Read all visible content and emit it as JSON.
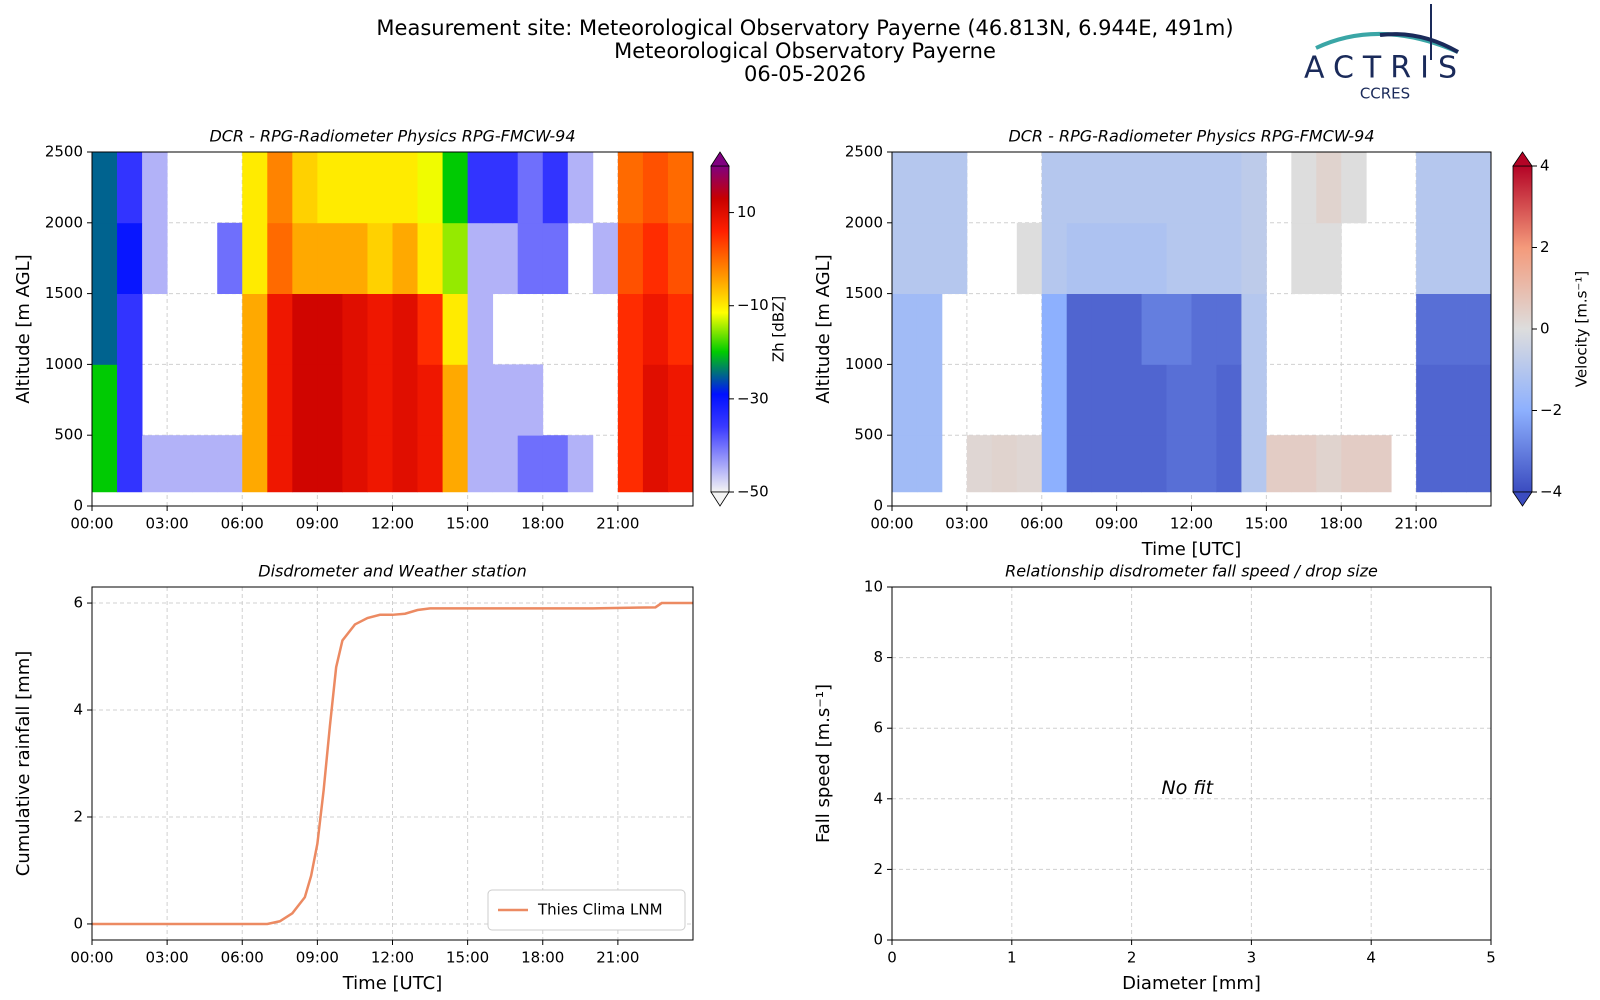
{
  "header": {
    "lines": [
      "Measurement site: Meteorological Observatory Payerne (46.813N, 6.944E, 491m)",
      "Meteorological Observatory Payerne",
      "06-05-2026"
    ],
    "logo": "ACTRIS",
    "logo_sub": "CCRES"
  },
  "chart_data": [
    {
      "type": "heatmap",
      "title": "DCR - RPG-Radiometer Physics RPG-FMCW-94",
      "ylabel": "Altitude [m AGL]",
      "colormap": "jet",
      "colorbar_label": "Zh [dBZ]",
      "clim": [
        -50,
        20
      ],
      "cbar_ticks": [
        {
          "value": -50,
          "label": "−50"
        },
        {
          "value": -30,
          "label": "−30"
        },
        {
          "value": -10,
          "label": "−10"
        },
        10
      ],
      "xlim": [
        0,
        24
      ],
      "xticks": [
        {
          "value": 0,
          "label": "00:00"
        },
        {
          "value": 3,
          "label": "03:00"
        },
        {
          "value": 6,
          "label": "06:00"
        },
        {
          "value": 9,
          "label": "09:00"
        },
        {
          "value": 12,
          "label": "12:00"
        },
        {
          "value": 15,
          "label": "15:00"
        },
        {
          "value": 18,
          "label": "18:00"
        },
        {
          "value": 21,
          "label": "21:00"
        }
      ],
      "ylim": [
        0,
        2500
      ],
      "yticks": [
        0,
        500,
        1000,
        1500,
        2000,
        2500
      ],
      "grid": true,
      "x_bins": [
        0,
        1,
        2,
        3,
        4,
        5,
        6,
        7,
        8,
        9,
        10,
        11,
        12,
        13,
        14,
        15,
        16,
        17,
        18,
        19,
        20,
        21,
        22,
        23,
        24
      ],
      "y_bins": [
        100,
        500,
        1000,
        1500,
        2000,
        2500
      ],
      "values": [
        [
          -20,
          -35,
          -45,
          -45,
          -45,
          -45,
          -5,
          8,
          12,
          12,
          10,
          8,
          10,
          8,
          -5,
          -45,
          -45,
          -40,
          -40,
          -45,
          null,
          5,
          10,
          8
        ],
        [
          -20,
          -35,
          null,
          null,
          null,
          null,
          -5,
          8,
          12,
          12,
          10,
          8,
          10,
          8,
          -5,
          -45,
          -45,
          -45,
          null,
          null,
          null,
          5,
          10,
          8
        ],
        [
          -25,
          -35,
          null,
          null,
          null,
          null,
          -5,
          8,
          12,
          12,
          10,
          8,
          10,
          5,
          -10,
          -45,
          null,
          null,
          null,
          null,
          null,
          5,
          8,
          5
        ],
        [
          -25,
          -30,
          -45,
          null,
          null,
          -40,
          -10,
          0,
          -5,
          -5,
          -5,
          -8,
          -5,
          -10,
          -15,
          -45,
          -45,
          -40,
          -40,
          null,
          -45,
          2,
          5,
          2
        ],
        [
          -25,
          -35,
          -45,
          null,
          null,
          null,
          -10,
          -2,
          -8,
          -10,
          -10,
          -10,
          -10,
          -12,
          -20,
          -35,
          -35,
          -40,
          -35,
          -45,
          null,
          0,
          2,
          0
        ]
      ]
    },
    {
      "type": "heatmap",
      "title": "DCR - RPG-Radiometer Physics RPG-FMCW-94",
      "ylabel": "Altitude [m AGL]",
      "xlabel": "Time [UTC]",
      "colormap": "coolwarm",
      "colorbar_label": "Velocity [m.s⁻¹]",
      "clim": [
        -4,
        4
      ],
      "cbar_ticks": [
        {
          "value": -4,
          "label": "−4"
        },
        {
          "value": -2,
          "label": "−2"
        },
        0,
        2,
        4
      ],
      "xlim": [
        0,
        24
      ],
      "xticks": [
        {
          "value": 0,
          "label": "00:00"
        },
        {
          "value": 3,
          "label": "03:00"
        },
        {
          "value": 6,
          "label": "06:00"
        },
        {
          "value": 9,
          "label": "09:00"
        },
        {
          "value": 12,
          "label": "12:00"
        },
        {
          "value": 15,
          "label": "15:00"
        },
        {
          "value": 18,
          "label": "18:00"
        },
        {
          "value": 21,
          "label": "21:00"
        }
      ],
      "ylim": [
        0,
        2500
      ],
      "yticks": [
        0,
        500,
        1000,
        1500,
        2000,
        2500
      ],
      "grid": true,
      "x_bins": [
        0,
        1,
        2,
        3,
        4,
        5,
        6,
        7,
        8,
        9,
        10,
        11,
        12,
        13,
        14,
        15,
        16,
        17,
        18,
        19,
        20,
        21,
        22,
        23,
        24
      ],
      "y_bins": [
        100,
        500,
        1000,
        1500,
        2000,
        2500
      ],
      "values": [
        [
          -1.5,
          -1.5,
          null,
          0.2,
          0.3,
          0.2,
          -2,
          -3.5,
          -3.5,
          -3.5,
          -3.5,
          -3.3,
          -3.3,
          -3.5,
          -1,
          0.5,
          0.5,
          0.3,
          0.5,
          0.5,
          null,
          -3.5,
          -3.5,
          -3.5
        ],
        [
          -1.5,
          -1.5,
          null,
          null,
          null,
          null,
          -2,
          -3.5,
          -3.5,
          -3.5,
          -3.5,
          -3.3,
          -3.3,
          -3.5,
          -1,
          null,
          null,
          null,
          null,
          null,
          null,
          -3.5,
          -3.5,
          -3.5
        ],
        [
          -1.5,
          -1.5,
          null,
          null,
          null,
          null,
          -2,
          -3.5,
          -3.5,
          -3.5,
          -3,
          -3,
          -3.3,
          -3.3,
          -1,
          null,
          null,
          null,
          null,
          null,
          null,
          -3.3,
          -3.3,
          -3.3
        ],
        [
          -1,
          -1,
          -1,
          null,
          null,
          0,
          -1,
          -1.2,
          -1.2,
          -1.2,
          -1.2,
          -1,
          -1,
          -1,
          -0.8,
          null,
          0,
          0,
          null,
          null,
          null,
          -1,
          -1,
          -1
        ],
        [
          -1,
          -1,
          -1,
          null,
          null,
          null,
          -1,
          -1,
          -1,
          -1,
          -1,
          -1,
          -1,
          -1,
          -0.8,
          null,
          0,
          0.3,
          0,
          null,
          null,
          -1,
          -1,
          -1
        ]
      ]
    },
    {
      "type": "line",
      "title": "Disdrometer and Weather station",
      "xlabel": "Time [UTC]",
      "ylabel": "Cumulative rainfall [mm]",
      "xlim": [
        0,
        24
      ],
      "xticks": [
        {
          "value": 0,
          "label": "00:00"
        },
        {
          "value": 3,
          "label": "03:00"
        },
        {
          "value": 6,
          "label": "06:00"
        },
        {
          "value": 9,
          "label": "09:00"
        },
        {
          "value": 12,
          "label": "12:00"
        },
        {
          "value": 15,
          "label": "15:00"
        },
        {
          "value": 18,
          "label": "18:00"
        },
        {
          "value": 21,
          "label": "21:00"
        }
      ],
      "ylim": [
        -0.3,
        6.3
      ],
      "yticks": [
        0,
        2,
        4,
        6
      ],
      "grid": true,
      "legend": "lower right",
      "x": [
        0,
        7,
        7.5,
        8,
        8.5,
        8.75,
        9,
        9.25,
        9.5,
        9.75,
        10,
        10.5,
        11,
        11.5,
        12,
        12.5,
        13,
        13.5,
        20,
        22.5,
        22.75,
        24
      ],
      "series": [
        {
          "name": "Thies Clima LNM",
          "color": "#ec8a62",
          "values": [
            0,
            0,
            0.05,
            0.2,
            0.5,
            0.9,
            1.5,
            2.5,
            3.7,
            4.8,
            5.3,
            5.6,
            5.72,
            5.78,
            5.78,
            5.8,
            5.87,
            5.9,
            5.9,
            5.92,
            6.0,
            6.0
          ]
        }
      ]
    },
    {
      "type": "scatter",
      "title": "Relationship disdrometer fall speed / drop size",
      "xlabel": "Diameter [mm]",
      "ylabel": "Fall speed [m.s⁻¹]",
      "annotation": "No fit",
      "xlim": [
        0,
        5
      ],
      "xticks": [
        0,
        1,
        2,
        3,
        4,
        5
      ],
      "ylim": [
        0,
        10
      ],
      "yticks": [
        0,
        2,
        4,
        6,
        8,
        10
      ],
      "grid": true,
      "x": [],
      "values": []
    }
  ]
}
